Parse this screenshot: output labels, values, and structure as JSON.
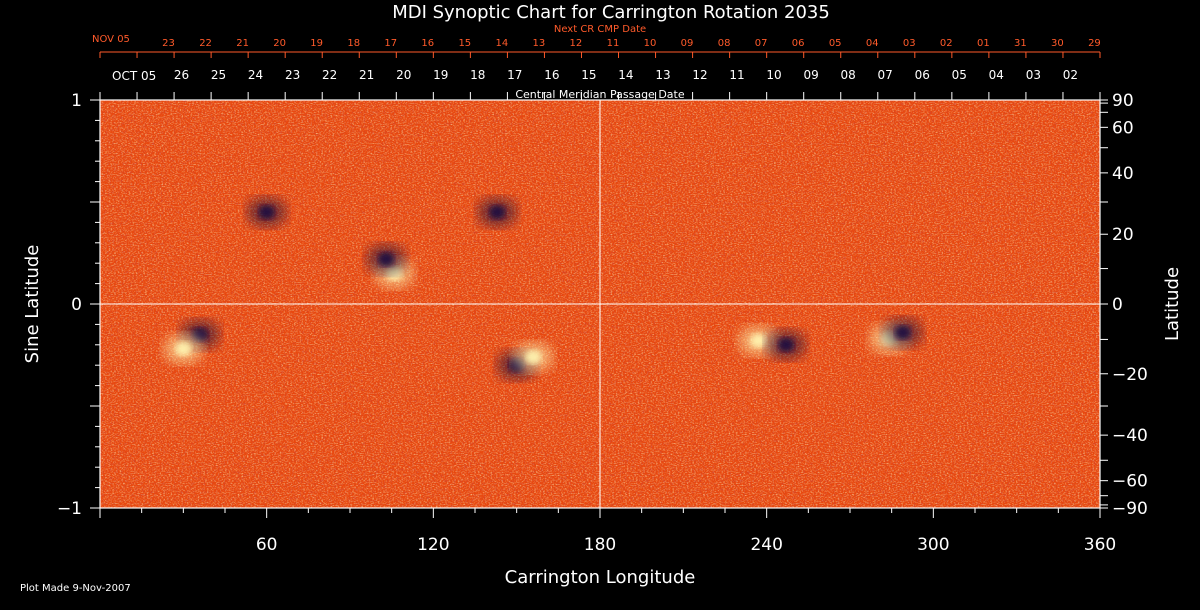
{
  "chart_data": {
    "type": "heatmap",
    "title": "MDI Synoptic Chart for Carrington Rotation 2035",
    "xlabel": "Carrington Longitude",
    "ylabel_left": "Sine Latitude",
    "ylabel_right": "Latitude",
    "xlim": [
      0,
      360
    ],
    "ylim": [
      -1,
      1
    ],
    "x_ticks": [
      60,
      120,
      180,
      240,
      300,
      360
    ],
    "y_ticks_left": [
      {
        "value": 1,
        "label": "1"
      },
      {
        "value": 0,
        "label": "0"
      },
      {
        "value": -1,
        "label": "−1"
      }
    ],
    "y_ticks_right": [
      90,
      60,
      40,
      20,
      0,
      -20,
      -40,
      -60,
      -90
    ],
    "y_ticks_right_labels": [
      "90",
      "60",
      "40",
      "20",
      "0",
      "−20",
      "−40",
      "−60",
      "−90"
    ],
    "grid": "lines at longitude 180 and latitude 0",
    "top_axis_label": "Central Meridian Passage Date",
    "top_axis_month": "OCT 05",
    "top_axis_dates": [
      "26",
      "25",
      "24",
      "23",
      "22",
      "21",
      "20",
      "19",
      "18",
      "17",
      "16",
      "15",
      "14",
      "13",
      "12",
      "11",
      "10",
      "09",
      "08",
      "07",
      "06",
      "05",
      "04",
      "03",
      "02"
    ],
    "next_cr_label": "Next CR CMP Date",
    "next_cr_month": "NOV 05",
    "next_cr_dates": [
      "23",
      "22",
      "21",
      "20",
      "19",
      "18",
      "17",
      "16",
      "15",
      "14",
      "13",
      "12",
      "11",
      "10",
      "09",
      "08",
      "07",
      "06",
      "05",
      "04",
      "03",
      "02",
      "01",
      "31",
      "30",
      "29"
    ],
    "features": [
      {
        "polarity": "positive",
        "lon": 106,
        "sinlat": 0.15
      },
      {
        "polarity": "negative",
        "lon": 103,
        "sinlat": 0.22
      },
      {
        "polarity": "negative",
        "lon": 36,
        "sinlat": -0.15
      },
      {
        "polarity": "positive",
        "lon": 30,
        "sinlat": -0.22
      },
      {
        "polarity": "negative",
        "lon": 150,
        "sinlat": -0.3
      },
      {
        "polarity": "positive",
        "lon": 156,
        "sinlat": -0.26
      },
      {
        "polarity": "positive",
        "lon": 237,
        "sinlat": -0.18
      },
      {
        "polarity": "negative",
        "lon": 247,
        "sinlat": -0.2
      },
      {
        "polarity": "positive",
        "lon": 284,
        "sinlat": -0.17
      },
      {
        "polarity": "negative",
        "lon": 289,
        "sinlat": -0.14
      },
      {
        "polarity": "negative",
        "lon": 60,
        "sinlat": 0.45
      },
      {
        "polarity": "negative",
        "lon": 143,
        "sinlat": 0.45
      }
    ]
  },
  "footer": {
    "plot_made": "Plot Made  9-Nov-2007"
  },
  "colors": {
    "background": "#000000",
    "map_base": "#e8480f",
    "positive": "#fff4b0",
    "negative": "#1a1040",
    "next_cr_text": "#ff5a2a",
    "axes": "#ffffff"
  }
}
